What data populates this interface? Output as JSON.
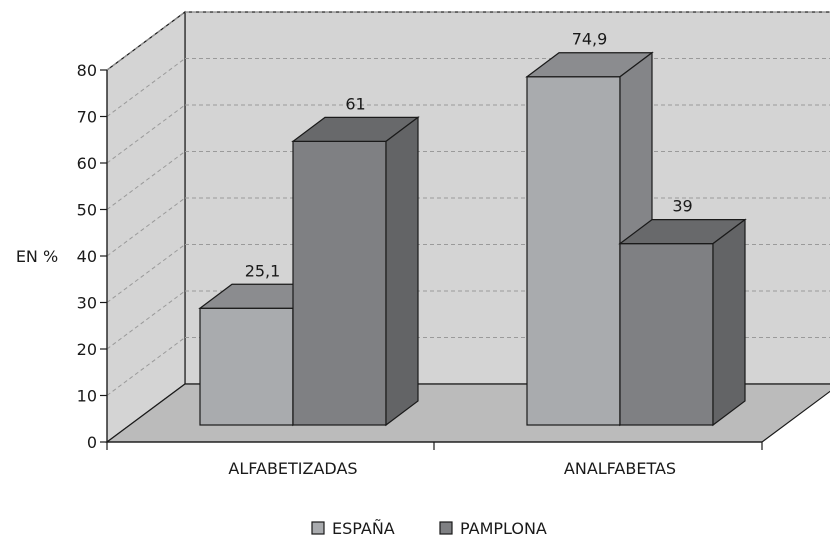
{
  "chart_data": {
    "type": "bar",
    "style": "3d-grouped",
    "categories": [
      "ALFABETIZADAS",
      "ANALFABETAS"
    ],
    "series": [
      {
        "name": "ESPAÑA",
        "values": [
          25.1,
          74.9
        ],
        "labels": [
          "25,1",
          "74,9"
        ],
        "color": "#a9abae"
      },
      {
        "name": "PAMPLONA",
        "values": [
          61,
          39
        ],
        "labels": [
          "61",
          "39"
        ],
        "color": "#7f8083"
      }
    ],
    "ylabel": "EN %",
    "ylim": [
      0,
      80
    ],
    "yticks": [
      "0",
      "10",
      "20",
      "30",
      "40",
      "50",
      "60",
      "70",
      "80"
    ],
    "grid": true,
    "legend": "bottom-center",
    "colors": {
      "wall": "#d4d4d4",
      "floor": "#bbbbbb",
      "grid": "#9a9a9a",
      "edge": "#1a1a1a"
    }
  }
}
